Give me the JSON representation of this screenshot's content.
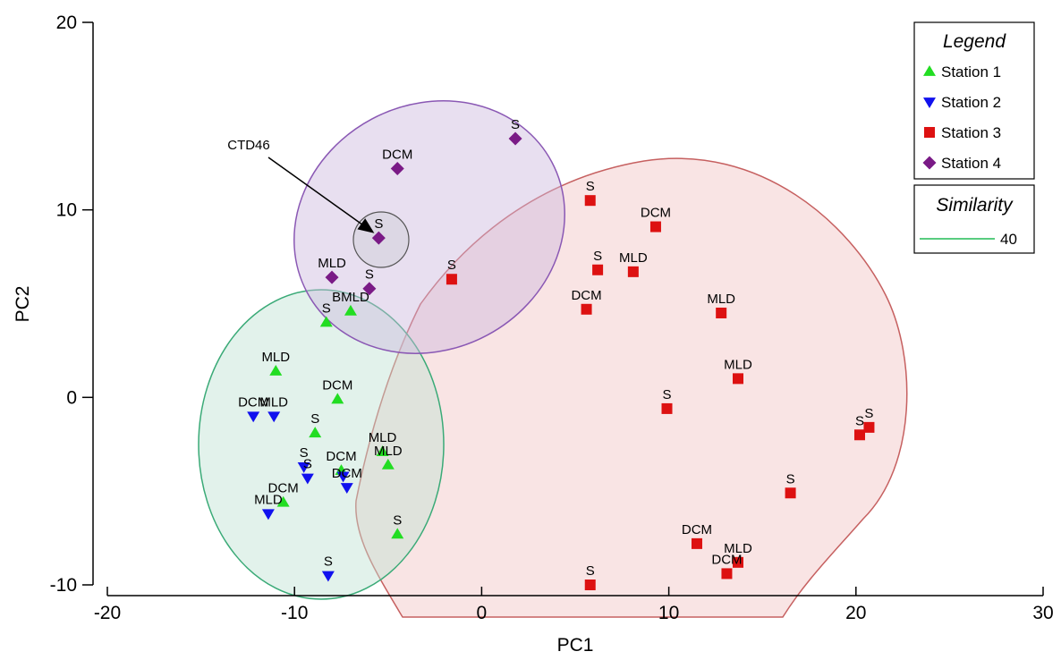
{
  "chart_data": {
    "type": "scatter",
    "xlabel": "PC1",
    "ylabel": "PC2",
    "xlim": [
      -20,
      30
    ],
    "ylim": [
      -10,
      20
    ],
    "xticks": [
      -20,
      -10,
      0,
      10,
      20,
      30
    ],
    "yticks": [
      -10,
      0,
      10,
      20
    ],
    "legend": {
      "title": "Legend",
      "placement": "top-right",
      "entries": [
        {
          "name": "Station 1",
          "marker": "triangle-up",
          "color": "#22dd22"
        },
        {
          "name": "Station 2",
          "marker": "triangle-down",
          "color": "#1111ee"
        },
        {
          "name": "Station 3",
          "marker": "square",
          "color": "#dd1111"
        },
        {
          "name": "Station 4",
          "marker": "diamond",
          "color": "#7a1a86"
        }
      ]
    },
    "similarity_legend": {
      "title": "Similarity",
      "value": "40",
      "color": "#22bb55"
    },
    "series": [
      {
        "name": "Station 1",
        "points": [
          {
            "x": -8.3,
            "y": 4.0,
            "label": "S"
          },
          {
            "x": -7.0,
            "y": 4.6,
            "label": "BMLD"
          },
          {
            "x": -11.0,
            "y": 1.4,
            "label": "MLD"
          },
          {
            "x": -7.7,
            "y": -0.1,
            "label": "DCM"
          },
          {
            "x": -8.9,
            "y": -1.9,
            "label": "S"
          },
          {
            "x": -5.3,
            "y": -2.9,
            "label": "MLD"
          },
          {
            "x": -5.0,
            "y": -3.6,
            "label": "MLD"
          },
          {
            "x": -7.5,
            "y": -3.9,
            "label": "DCM"
          },
          {
            "x": -10.6,
            "y": -5.6,
            "label": "DCM"
          },
          {
            "x": -4.5,
            "y": -7.3,
            "label": "S"
          }
        ]
      },
      {
        "name": "Station 2",
        "points": [
          {
            "x": -12.2,
            "y": -1.0,
            "label": "DCM"
          },
          {
            "x": -11.1,
            "y": -1.0,
            "label": "MLD"
          },
          {
            "x": -9.5,
            "y": -3.7,
            "label": "S"
          },
          {
            "x": -9.3,
            "y": -4.3,
            "label": "S"
          },
          {
            "x": -7.4,
            "y": -4.2,
            "label": ""
          },
          {
            "x": -7.2,
            "y": -4.8,
            "label": "DCM"
          },
          {
            "x": -11.4,
            "y": -6.2,
            "label": "MLD"
          },
          {
            "x": -8.2,
            "y": -9.5,
            "label": "S"
          }
        ]
      },
      {
        "name": "Station 3",
        "points": [
          {
            "x": 5.8,
            "y": 10.5,
            "label": "S"
          },
          {
            "x": 9.3,
            "y": 9.1,
            "label": "DCM"
          },
          {
            "x": 6.2,
            "y": 6.8,
            "label": "S"
          },
          {
            "x": 8.1,
            "y": 6.7,
            "label": "MLD"
          },
          {
            "x": -1.6,
            "y": 6.3,
            "label": "S"
          },
          {
            "x": 5.6,
            "y": 4.7,
            "label": "DCM"
          },
          {
            "x": 12.8,
            "y": 4.5,
            "label": "MLD"
          },
          {
            "x": 13.7,
            "y": 1.0,
            "label": "MLD"
          },
          {
            "x": 9.9,
            "y": -0.6,
            "label": "S"
          },
          {
            "x": 20.2,
            "y": -2.0,
            "label": "S"
          },
          {
            "x": 20.7,
            "y": -1.6,
            "label": "S"
          },
          {
            "x": 16.5,
            "y": -5.1,
            "label": "S"
          },
          {
            "x": 11.5,
            "y": -7.8,
            "label": "DCM"
          },
          {
            "x": 13.7,
            "y": -8.8,
            "label": "MLD"
          },
          {
            "x": 13.1,
            "y": -9.4,
            "label": "DCM"
          },
          {
            "x": 5.8,
            "y": -10.0,
            "label": "S"
          }
        ]
      },
      {
        "name": "Station 4",
        "points": [
          {
            "x": 1.8,
            "y": 13.8,
            "label": "S"
          },
          {
            "x": -4.5,
            "y": 12.2,
            "label": "DCM"
          },
          {
            "x": -5.5,
            "y": 8.5,
            "label": "S"
          },
          {
            "x": -8.0,
            "y": 6.4,
            "label": "MLD"
          },
          {
            "x": -6.0,
            "y": 5.8,
            "label": "S"
          }
        ]
      }
    ],
    "annotations": [
      {
        "text": "CTD46"
      }
    ]
  }
}
